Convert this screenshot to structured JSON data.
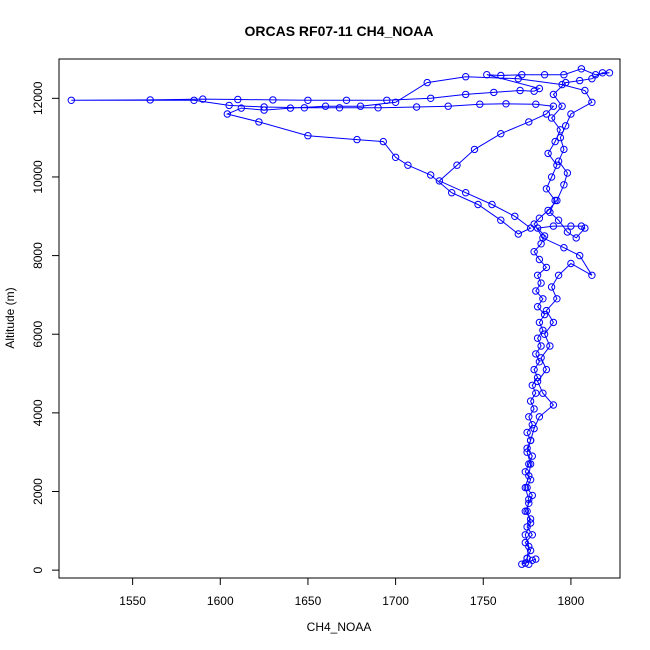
{
  "chart_data": {
    "type": "scatter",
    "title": "ORCAS RF07-11 CH4_NOAA",
    "xlabel": "CH4_NOAA",
    "ylabel": "Altitude (m)",
    "xlim": [
      1508,
      1828
    ],
    "ylim": [
      -200,
      13000
    ],
    "xticks": [
      1550,
      1600,
      1650,
      1700,
      1750,
      1800
    ],
    "yticks": [
      0,
      2000,
      4000,
      6000,
      8000,
      10000,
      12000
    ],
    "grid": false,
    "legend": "none",
    "marker": "open-circle",
    "connected": true,
    "color": "#0000ff",
    "series": [
      {
        "points": [
          [
            1776,
            150
          ],
          [
            1775,
            300
          ],
          [
            1777,
            500
          ],
          [
            1774,
            700
          ],
          [
            1778,
            900
          ],
          [
            1775,
            1100
          ],
          [
            1777,
            1300
          ],
          [
            1774,
            1500
          ],
          [
            1776,
            1700
          ],
          [
            1778,
            1900
          ],
          [
            1775,
            2100
          ],
          [
            1777,
            2300
          ],
          [
            1774,
            2500
          ],
          [
            1776,
            2700
          ],
          [
            1778,
            2900
          ],
          [
            1775,
            3100
          ],
          [
            1777,
            3300
          ],
          [
            1775,
            3500
          ],
          [
            1778,
            3700
          ],
          [
            1776,
            3900
          ],
          [
            1779,
            4100
          ],
          [
            1777,
            4300
          ],
          [
            1780,
            4500
          ],
          [
            1778,
            4700
          ],
          [
            1781,
            4900
          ],
          [
            1779,
            5100
          ],
          [
            1782,
            5300
          ],
          [
            1780,
            5500
          ],
          [
            1783,
            5700
          ],
          [
            1781,
            5900
          ],
          [
            1784,
            6100
          ],
          [
            1782,
            6300
          ],
          [
            1785,
            6500
          ],
          [
            1781,
            6700
          ],
          [
            1784,
            6900
          ],
          [
            1780,
            7100
          ],
          [
            1783,
            7300
          ],
          [
            1781,
            7500
          ],
          [
            1786,
            7700
          ],
          [
            1782,
            7900
          ],
          [
            1779,
            8100
          ],
          [
            1783,
            8300
          ],
          [
            1785,
            8500
          ],
          [
            1781,
            8700
          ],
          [
            1790,
            8750
          ],
          [
            1800,
            8750
          ],
          [
            1806,
            8750
          ],
          [
            1808,
            8700
          ],
          [
            1803,
            8450
          ],
          [
            1798,
            8600
          ],
          [
            1793,
            8900
          ],
          [
            1788,
            9100
          ],
          [
            1791,
            9400
          ],
          [
            1786,
            9700
          ],
          [
            1789,
            10000
          ],
          [
            1792,
            10300
          ],
          [
            1787,
            10600
          ],
          [
            1791,
            10900
          ],
          [
            1794,
            11200
          ],
          [
            1789,
            11500
          ],
          [
            1795,
            11800
          ],
          [
            1790,
            12100
          ],
          [
            1797,
            12400
          ],
          [
            1805,
            12450
          ],
          [
            1812,
            12500
          ],
          [
            1818,
            12650
          ],
          [
            1822,
            12650
          ],
          [
            1814,
            12600
          ],
          [
            1806,
            12750
          ],
          [
            1796,
            12600
          ],
          [
            1785,
            12600
          ],
          [
            1772,
            12600
          ],
          [
            1760,
            12580
          ],
          [
            1752,
            12600
          ],
          [
            1782,
            12250
          ],
          [
            1779,
            12180
          ],
          [
            1771,
            12200
          ],
          [
            1756,
            12150
          ],
          [
            1740,
            12100
          ],
          [
            1720,
            12000
          ],
          [
            1695,
            11950
          ],
          [
            1672,
            11950
          ],
          [
            1650,
            11950
          ],
          [
            1630,
            11960
          ],
          [
            1610,
            11970
          ],
          [
            1590,
            11980
          ],
          [
            1560,
            11960
          ],
          [
            1515,
            11950
          ],
          [
            1585,
            11950
          ],
          [
            1605,
            11820
          ],
          [
            1625,
            11780
          ],
          [
            1648,
            11760
          ],
          [
            1668,
            11760
          ],
          [
            1690,
            11760
          ],
          [
            1712,
            11780
          ],
          [
            1730,
            11800
          ],
          [
            1748,
            11850
          ],
          [
            1763,
            11860
          ],
          [
            1780,
            11850
          ],
          [
            1790,
            11800
          ],
          [
            1786,
            11600
          ],
          [
            1776,
            11400
          ],
          [
            1760,
            11100
          ],
          [
            1745,
            10700
          ],
          [
            1735,
            10300
          ],
          [
            1725,
            9900
          ],
          [
            1740,
            9600
          ],
          [
            1755,
            9300
          ],
          [
            1768,
            9000
          ],
          [
            1777,
            8700
          ],
          [
            1770,
            8550
          ],
          [
            1760,
            8900
          ],
          [
            1747,
            9300
          ],
          [
            1732,
            9600
          ],
          [
            1720,
            10050
          ],
          [
            1707,
            10300
          ],
          [
            1700,
            10500
          ],
          [
            1693,
            10900
          ],
          [
            1678,
            10950
          ],
          [
            1650,
            11050
          ],
          [
            1622,
            11400
          ],
          [
            1604,
            11600
          ],
          [
            1612,
            11750
          ],
          [
            1625,
            11700
          ],
          [
            1640,
            11750
          ],
          [
            1660,
            11800
          ],
          [
            1680,
            11800
          ],
          [
            1700,
            11900
          ],
          [
            1718,
            12400
          ],
          [
            1740,
            12550
          ],
          [
            1770,
            12500
          ],
          [
            1795,
            12350
          ],
          [
            1808,
            12200
          ],
          [
            1812,
            11900
          ],
          [
            1800,
            11600
          ],
          [
            1797,
            11300
          ],
          [
            1794,
            11000
          ],
          [
            1796,
            10700
          ],
          [
            1793,
            10400
          ],
          [
            1798,
            10100
          ],
          [
            1796,
            9800
          ],
          [
            1792,
            9400
          ],
          [
            1787,
            9150
          ],
          [
            1782,
            8950
          ],
          [
            1779,
            8800
          ],
          [
            1784,
            8450
          ],
          [
            1796,
            8200
          ],
          [
            1805,
            8000
          ],
          [
            1812,
            7500
          ],
          [
            1800,
            7800
          ],
          [
            1793,
            7500
          ],
          [
            1789,
            7200
          ],
          [
            1792,
            6900
          ],
          [
            1786,
            6600
          ],
          [
            1790,
            6300
          ],
          [
            1785,
            6000
          ],
          [
            1788,
            5700
          ],
          [
            1783,
            5400
          ],
          [
            1786,
            5100
          ],
          [
            1781,
            4800
          ],
          [
            1784,
            4500
          ],
          [
            1790,
            4200
          ],
          [
            1782,
            3900
          ],
          [
            1779,
            3600
          ],
          [
            1777,
            3300
          ],
          [
            1775,
            3000
          ],
          [
            1777,
            2700
          ],
          [
            1776,
            2400
          ],
          [
            1774,
            2100
          ],
          [
            1776,
            1800
          ],
          [
            1775,
            1500
          ],
          [
            1777,
            1200
          ],
          [
            1774,
            900
          ],
          [
            1776,
            600
          ],
          [
            1775,
            300
          ],
          [
            1772,
            150
          ],
          [
            1778,
            250
          ],
          [
            1774,
            180
          ],
          [
            1780,
            280
          ]
        ]
      }
    ]
  }
}
